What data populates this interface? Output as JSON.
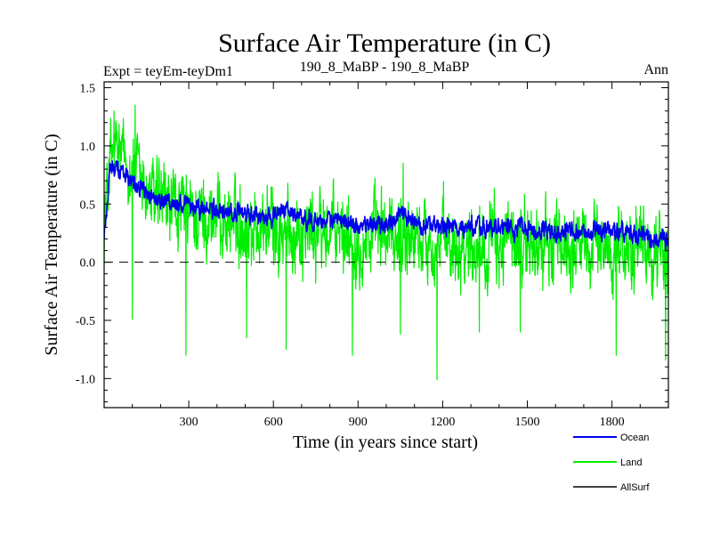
{
  "header": {
    "title": "Surface Air Temperature (in C)",
    "expt_label": "Expt = teyEm-teyDm1",
    "comparison_label": "190_8_MaBP - 190_8_MaBP",
    "period_label": "Ann"
  },
  "chart_data": {
    "type": "line",
    "title": "Surface Air Temperature (in C)",
    "xlabel": "Time (in years since start)",
    "ylabel": "Surface Air Temperature (in C)",
    "xlim": [
      0,
      2000
    ],
    "ylim": [
      -1.25,
      1.55
    ],
    "xticks": [
      300,
      600,
      900,
      1200,
      1500,
      1800
    ],
    "xtick_labels": [
      "300",
      "600",
      "900",
      "1200",
      "1500",
      "1800"
    ],
    "yticks": [
      -1.0,
      -0.5,
      0.0,
      0.5,
      1.0,
      1.5
    ],
    "ytick_labels": [
      "-1.0",
      "-0.5",
      "0.0",
      "0.5",
      "1.0",
      "1.5"
    ],
    "zero_line": "dashed",
    "legend_position": "bottom-right, outside plot",
    "series": [
      {
        "name": "Land",
        "color": "#00ee00",
        "x": [
          0,
          20,
          50,
          80,
          110,
          150,
          200,
          250,
          290,
          300,
          350,
          400,
          450,
          500,
          550,
          600,
          645,
          650,
          700,
          750,
          800,
          850,
          900,
          950,
          1000,
          1050,
          1100,
          1150,
          1180,
          1200,
          1250,
          1300,
          1350,
          1400,
          1450,
          1500,
          1550,
          1600,
          1650,
          1700,
          1750,
          1800,
          1850,
          1900,
          1950,
          2000
        ],
        "values": [
          0.3,
          0.9,
          0.95,
          0.85,
          0.8,
          0.6,
          0.5,
          0.45,
          0.4,
          0.38,
          0.4,
          0.38,
          0.35,
          0.33,
          0.3,
          0.3,
          0.15,
          0.28,
          0.28,
          0.27,
          0.25,
          0.24,
          0.22,
          0.22,
          0.22,
          0.25,
          0.21,
          0.18,
          0.15,
          0.18,
          0.18,
          0.17,
          0.16,
          0.15,
          0.16,
          0.15,
          0.14,
          0.15,
          0.14,
          0.14,
          0.13,
          0.13,
          0.12,
          0.12,
          0.1,
          0.1
        ],
        "noise_amplitude": 0.22,
        "spikes": [
          {
            "x": 100,
            "value": -0.49
          },
          {
            "x": 290,
            "value": -0.8
          },
          {
            "x": 505,
            "value": -0.65
          },
          {
            "x": 645,
            "value": -0.75
          },
          {
            "x": 880,
            "value": -0.8
          },
          {
            "x": 1050,
            "value": -0.62
          },
          {
            "x": 1180,
            "value": -1.01
          },
          {
            "x": 1330,
            "value": -0.6
          },
          {
            "x": 1475,
            "value": -0.6
          },
          {
            "x": 1815,
            "value": -0.8
          },
          {
            "x": 1990,
            "value": -0.84
          },
          {
            "x": 110,
            "value": 1.35
          },
          {
            "x": 35,
            "value": 1.3
          },
          {
            "x": 1060,
            "value": 0.85
          }
        ]
      },
      {
        "name": "Ocean",
        "color": "#0000ee",
        "x": [
          0,
          20,
          50,
          100,
          150,
          200,
          300,
          400,
          500,
          600,
          650,
          700,
          800,
          900,
          1000,
          1050,
          1100,
          1200,
          1300,
          1400,
          1500,
          1600,
          1700,
          1800,
          1900,
          2000
        ],
        "values": [
          0.2,
          0.8,
          0.8,
          0.72,
          0.58,
          0.52,
          0.48,
          0.44,
          0.4,
          0.4,
          0.45,
          0.38,
          0.35,
          0.33,
          0.32,
          0.42,
          0.33,
          0.3,
          0.3,
          0.29,
          0.28,
          0.27,
          0.26,
          0.26,
          0.24,
          0.18
        ],
        "noise_amplitude": 0.07
      },
      {
        "name": "AllSurf",
        "color": "#000000",
        "x": [],
        "values": []
      }
    ]
  }
}
